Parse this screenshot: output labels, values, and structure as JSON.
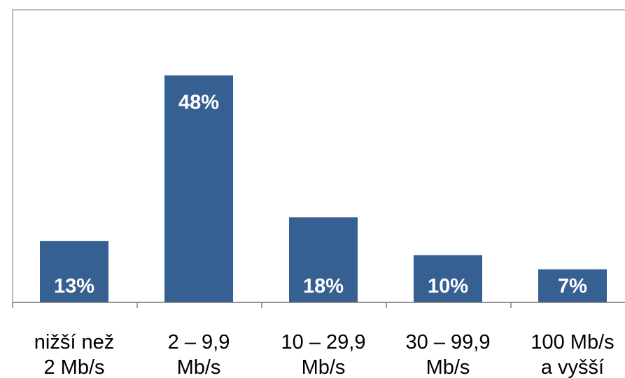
{
  "chart_data": {
    "type": "bar",
    "title": "",
    "xlabel": "",
    "ylabel": "",
    "categories": [
      [
        "nižší než",
        "2 Mb/s"
      ],
      [
        "2 – 9,9",
        "Mb/s"
      ],
      [
        "10 – 29,9",
        "Mb/s"
      ],
      [
        "30 – 99,9",
        "Mb/s"
      ],
      [
        "100 Mb/s",
        "a vyšší"
      ]
    ],
    "values": [
      13,
      48,
      18,
      10,
      7
    ],
    "data_labels": [
      "13%",
      "48%",
      "18%",
      "10%",
      "7%"
    ],
    "unit": "%",
    "ylim": [
      0,
      60
    ],
    "grid": false,
    "legend": "none",
    "colors": {
      "bar": "#376092",
      "label_inside": "#ffffff",
      "label_outside": "#000000",
      "axis": "#808080",
      "frame": "#a6a6a6"
    }
  }
}
